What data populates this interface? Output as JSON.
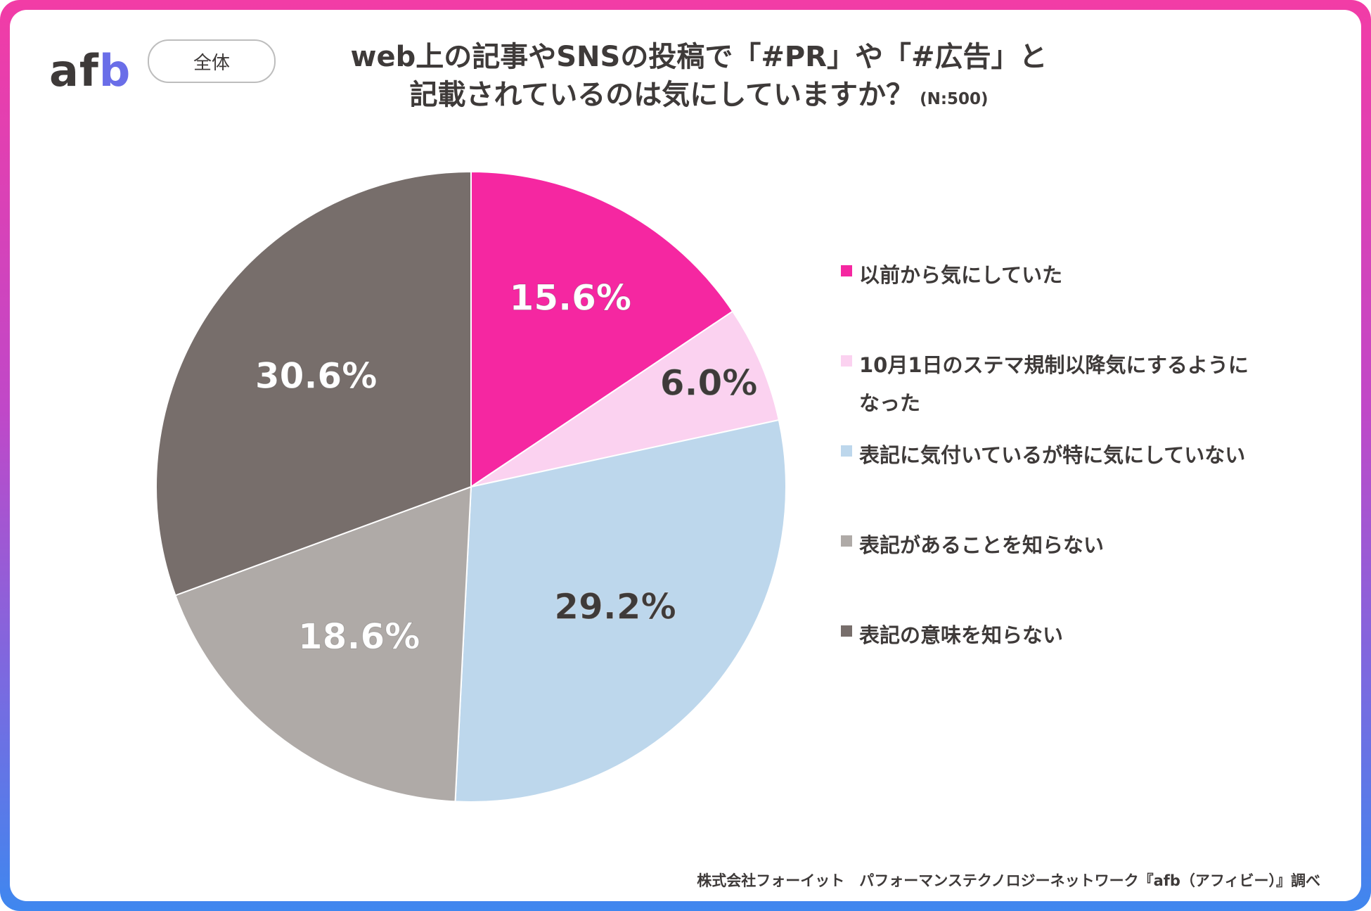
{
  "logo": {
    "text_af": "af",
    "text_b": "b"
  },
  "tag_label": "全体",
  "title_line1": "web上の記事やSNSの投稿で「#PR」や「#広告」と",
  "title_line2": "記載されているのは気にしていますか？",
  "sample_size": "(N:500)",
  "credit": "株式会社フォーイット　パフォーマンステクノロジーネットワーク『afb（アフィビー）』調べ",
  "chart_data": {
    "type": "pie",
    "title": "web上の記事やSNSの投稿で「#PR」や「#広告」と記載されているのは気にしていますか？",
    "n": 500,
    "categories": [
      "以前から気にしていた",
      "10月1日のステマ規制以降気にするようになった",
      "表記に気付いているが特に気にしていない",
      "表記があることを知らない",
      "表記の意味を知らない"
    ],
    "legend_lines": [
      [
        "以前から気にしていた"
      ],
      [
        "10月1日のステマ規制以降気にするように",
        "なった"
      ],
      [
        "表記に気付いているが特に気にしていない"
      ],
      [
        "表記があることを知らない"
      ],
      [
        "表記の意味を知らない"
      ]
    ],
    "values": [
      15.6,
      6.0,
      29.2,
      18.6,
      30.6
    ],
    "labels": [
      "15.6%",
      "6.0%",
      "29.2%",
      "18.6%",
      "30.6%"
    ],
    "colors": [
      "#f527a1",
      "#fbd2f0",
      "#bdd7ec",
      "#afaaa7",
      "#776e6b"
    ],
    "label_colors": [
      "#ffffff",
      "#3e3a39",
      "#3e3a39",
      "#ffffff",
      "#ffffff"
    ],
    "legend_position": "right"
  }
}
